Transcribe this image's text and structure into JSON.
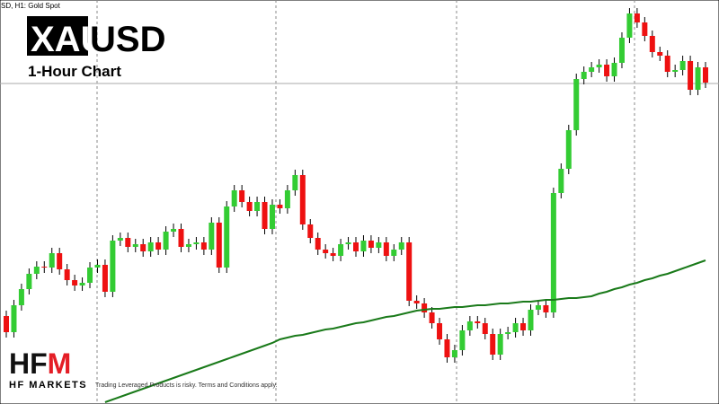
{
  "header": {
    "symbol_info": "SD, H1:  Gold Spot",
    "symbol_box": "XAU",
    "symbol_rest": "USD",
    "subtitle": "1-Hour Chart"
  },
  "footer": {
    "logo_hf": "HF",
    "logo_m": "M",
    "brand": "HF MARKETS",
    "disclaimer": "Trading Leveraged Products is risky. Terms and Conditions apply."
  },
  "chart_data": {
    "type": "candlestick",
    "ylim": [
      0,
      450
    ],
    "up_color": "#33cc33",
    "down_color": "#ee1111",
    "price_line": 357,
    "open": [
      98,
      80,
      110,
      128,
      145,
      153,
      152,
      168,
      150,
      138,
      132,
      135,
      152,
      155,
      125,
      182,
      185,
      175,
      178,
      170,
      180,
      172,
      192,
      195,
      175,
      178,
      180,
      172,
      202,
      152,
      220,
      238,
      225,
      215,
      225,
      195,
      222,
      218,
      238,
      255,
      200,
      185,
      172,
      168,
      165,
      178,
      180,
      170,
      182,
      174,
      180,
      165,
      172,
      180,
      115,
      112,
      102,
      90,
      72,
      52,
      60,
      82,
      92,
      90,
      78,
      55,
      78,
      80,
      90,
      82,
      105,
      110,
      102,
      235,
      262,
      305,
      362,
      370,
      375,
      378,
      365,
      380,
      408,
      435,
      425,
      410,
      392,
      388,
      370,
      372,
      382,
      350,
      375
    ],
    "high": [
      104,
      116,
      134,
      151,
      159,
      159,
      174,
      174,
      156,
      144,
      141,
      158,
      161,
      161,
      188,
      191,
      191,
      184,
      184,
      186,
      186,
      198,
      201,
      201,
      184,
      186,
      186,
      208,
      208,
      226,
      244,
      244,
      231,
      231,
      231,
      228,
      228,
      244,
      261,
      261,
      206,
      191,
      178,
      174,
      184,
      186,
      186,
      188,
      188,
      186,
      186,
      178,
      186,
      186,
      121,
      118,
      108,
      96,
      78,
      66,
      88,
      98,
      98,
      96,
      84,
      84,
      86,
      96,
      96,
      111,
      116,
      116,
      241,
      268,
      311,
      368,
      376,
      381,
      384,
      384,
      386,
      414,
      441,
      441,
      431,
      416,
      398,
      394,
      378,
      388,
      388,
      381,
      381
    ],
    "low": [
      74,
      74,
      104,
      122,
      139,
      146,
      146,
      144,
      132,
      126,
      126,
      129,
      146,
      119,
      119,
      176,
      169,
      169,
      164,
      164,
      166,
      166,
      186,
      169,
      169,
      172,
      166,
      166,
      146,
      146,
      214,
      219,
      209,
      209,
      189,
      189,
      212,
      212,
      232,
      194,
      179,
      166,
      162,
      159,
      159,
      172,
      164,
      164,
      168,
      168,
      159,
      159,
      166,
      109,
      106,
      96,
      84,
      66,
      46,
      46,
      54,
      76,
      84,
      72,
      49,
      49,
      72,
      74,
      76,
      76,
      99,
      96,
      96,
      229,
      256,
      299,
      356,
      364,
      369,
      359,
      359,
      374,
      402,
      419,
      404,
      386,
      382,
      364,
      364,
      366,
      344,
      344,
      352
    ],
    "close": [
      80,
      110,
      128,
      145,
      153,
      152,
      168,
      150,
      138,
      132,
      135,
      152,
      155,
      125,
      182,
      185,
      175,
      178,
      170,
      180,
      172,
      192,
      195,
      175,
      178,
      180,
      172,
      202,
      152,
      220,
      238,
      225,
      215,
      225,
      195,
      222,
      218,
      238,
      255,
      200,
      185,
      172,
      168,
      165,
      178,
      180,
      170,
      182,
      174,
      180,
      165,
      172,
      180,
      115,
      112,
      102,
      90,
      72,
      52,
      60,
      82,
      92,
      90,
      78,
      55,
      78,
      80,
      90,
      82,
      105,
      110,
      102,
      235,
      262,
      305,
      362,
      370,
      375,
      378,
      365,
      380,
      408,
      435,
      425,
      410,
      392,
      388,
      370,
      372,
      382,
      350,
      375,
      358
    ],
    "ma": {
      "color": "#1a7a1a",
      "values": [
        null,
        null,
        null,
        null,
        null,
        null,
        null,
        null,
        null,
        null,
        null,
        null,
        null,
        2,
        5,
        8,
        11,
        14,
        17,
        20,
        23,
        26,
        29,
        32,
        35,
        38,
        41,
        44,
        47,
        50,
        53,
        56,
        59,
        62,
        65,
        68,
        72,
        74,
        76,
        77,
        79,
        81,
        83,
        84,
        86,
        88,
        90,
        91,
        93,
        95,
        97,
        98,
        100,
        102,
        104,
        105,
        106,
        106,
        107,
        108,
        108,
        109,
        110,
        110,
        111,
        112,
        112,
        113,
        114,
        114,
        115,
        116,
        116,
        117,
        118,
        118,
        119,
        120,
        123,
        125,
        128,
        130,
        133,
        135,
        138,
        140,
        143,
        145,
        148,
        151,
        154,
        157,
        160
      ]
    }
  }
}
